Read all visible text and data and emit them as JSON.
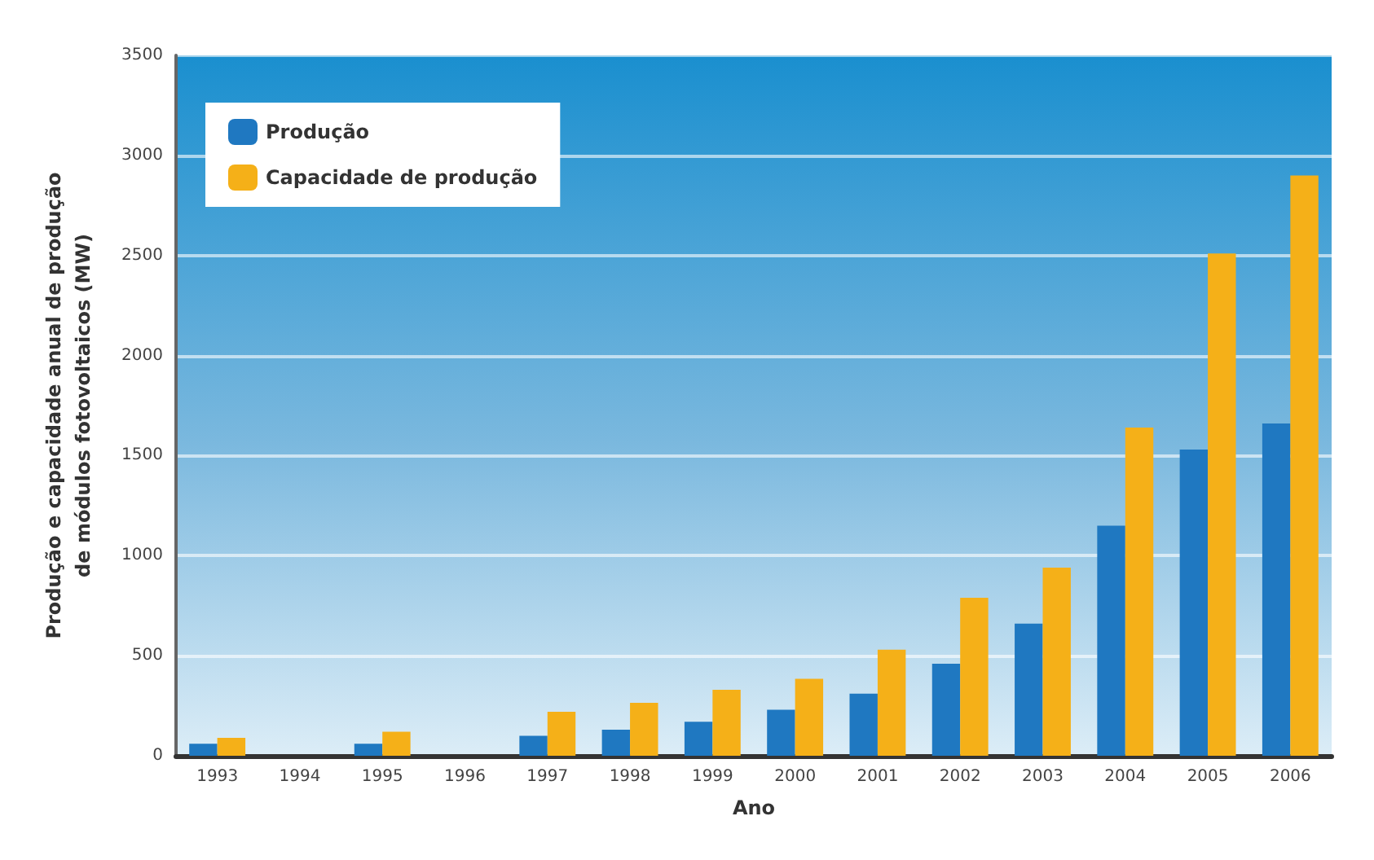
{
  "chart_data": {
    "type": "bar",
    "xlabel": "Ano",
    "ylabel": "Produção e capacidade anual de produção\nde módulos fotovoltaicos (MW)",
    "categories": [
      "1993",
      "1994",
      "1995",
      "1996",
      "1997",
      "1998",
      "1999",
      "2000",
      "2001",
      "2002",
      "2003",
      "2004",
      "2005",
      "2006"
    ],
    "series": [
      {
        "name": "Produção",
        "color": "#1f78c1",
        "values": [
          60,
          null,
          60,
          null,
          100,
          130,
          170,
          230,
          310,
          460,
          660,
          1150,
          1530,
          1660
        ]
      },
      {
        "name": "Capacidade de produção",
        "color": "#f5b018",
        "values": [
          90,
          null,
          120,
          null,
          220,
          265,
          330,
          385,
          530,
          790,
          940,
          1640,
          2510,
          2900
        ]
      }
    ],
    "ylim": [
      0,
      3500
    ],
    "yticks": [
      0,
      500,
      1000,
      1500,
      2000,
      2500,
      3000,
      3500
    ],
    "grid": "y",
    "legend": "top left"
  }
}
